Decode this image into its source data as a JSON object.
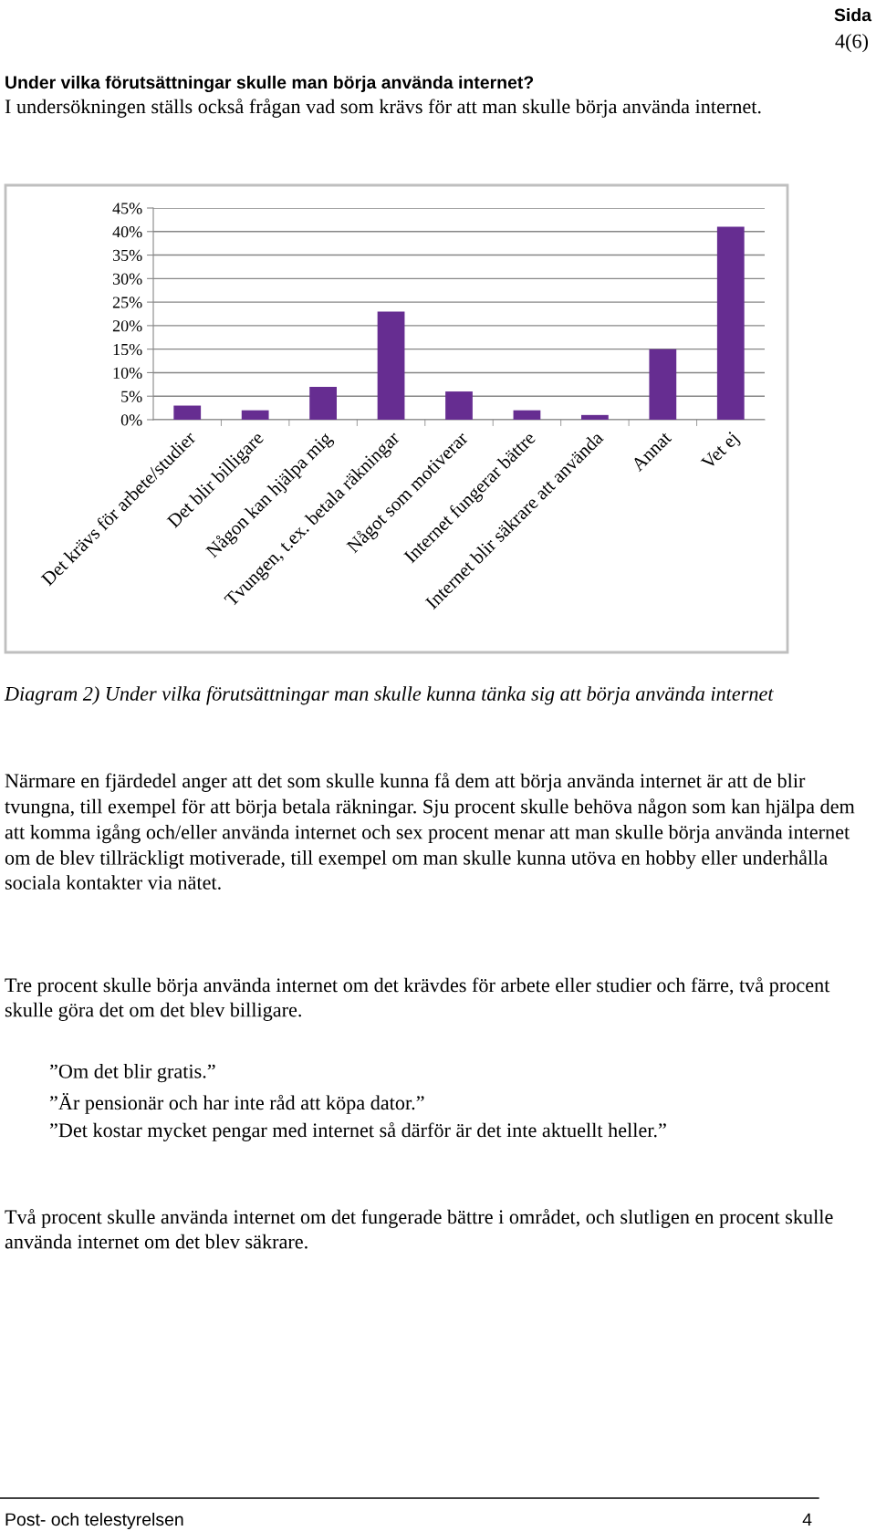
{
  "chart_data": {
    "type": "bar",
    "title": "Under vilka förutsättningar skulle man börja använda internet?",
    "subtitle": "I undersökningen ställs också frågan vad som krävs för att man skulle börja använda internet.",
    "categories": [
      "Det krävs för arbete/studier",
      "Det blir billigare",
      "Någon kan hjälpa mig",
      "Tvungen, t.ex. betala räkningar",
      "Något som motiverar",
      "Internet fungerar bättre",
      "Internet blir säkrare att använda",
      "Annat",
      "Vet ej"
    ],
    "values": [
      3,
      2,
      7,
      23,
      6,
      2,
      1,
      15,
      41
    ],
    "color": "#662d91",
    "ylim": [
      0,
      45
    ],
    "yticks": [
      {
        "value": 0,
        "label": "0%"
      },
      {
        "value": 5,
        "label": "5%"
      },
      {
        "value": 10,
        "label": "10%"
      },
      {
        "value": 15,
        "label": "15%"
      },
      {
        "value": 20,
        "label": "20%"
      },
      {
        "value": 25,
        "label": "25%"
      },
      {
        "value": 30,
        "label": "30%"
      },
      {
        "value": 35,
        "label": "35%"
      },
      {
        "value": 40,
        "label": "40%"
      },
      {
        "value": 45,
        "label": "45%"
      }
    ],
    "grid": "y",
    "annotations": [
      "Sida",
      "4(6)",
      "Diagram 2) Under vilka förutsättningar man skulle kunna tänka sig att börja använda internet",
      "Närmare en fjärdedel anger att det som skulle kunna få dem att börja använda internet är att de blir tvungna, till exempel för att börja betala räkningar. Sju procent skulle behöva någon som kan hjälpa dem att komma igång och/eller använda internet och sex procent menar att man skulle börja använda internet om de blev tillräckligt motiverade, till exempel om man skulle kunna utöva en hobby eller underhålla sociala kontakter via nätet.",
      "Tre procent skulle börja använda internet om det krävdes för arbete eller studier och färre, två procent skulle göra det om det blev billigare.",
      "”Om det blir gratis.”",
      "”Är pensionär och har inte råd att köpa dator.”",
      "”Det kostar mycket pengar med internet så därför är det inte aktuellt heller.”",
      "Två procent skulle använda internet om det fungerade bättre i området, och slutligen en procent skulle använda internet om det blev säkrare.",
      "Post- och telestyrelsen",
      "4"
    ]
  }
}
